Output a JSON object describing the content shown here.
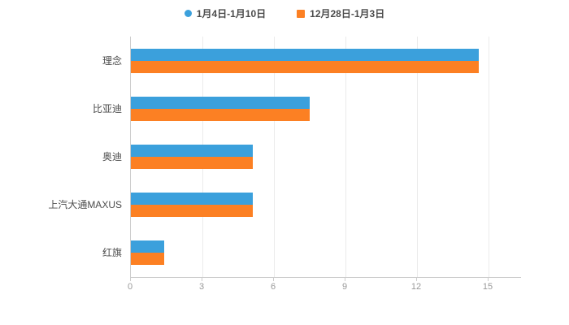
{
  "chart_data": {
    "type": "bar",
    "orientation": "horizontal",
    "title": "",
    "xlabel": "",
    "ylabel": "",
    "categories": [
      "理念",
      "比亚迪",
      "奥迪",
      "上汽大通MAXUS",
      "红旗"
    ],
    "series": [
      {
        "name": "1月4日-1月10日",
        "color": "#3ba0dc",
        "marker": "circle",
        "values": [
          14.6,
          7.5,
          5.1,
          5.1,
          1.4
        ]
      },
      {
        "name": "12月28日-1月3日",
        "color": "#fc8023",
        "marker": "square",
        "values": [
          14.6,
          7.5,
          5.1,
          5.1,
          1.4
        ]
      }
    ],
    "xlim": [
      0,
      15
    ],
    "x_ticks": [
      0,
      3,
      6,
      9,
      12,
      15
    ],
    "grid": true,
    "legend_position": "top",
    "colors": {
      "grid": "#ebebeb",
      "axis": "#cccccc",
      "tick_label": "#999999",
      "category_label": "#4c4c4c"
    }
  }
}
